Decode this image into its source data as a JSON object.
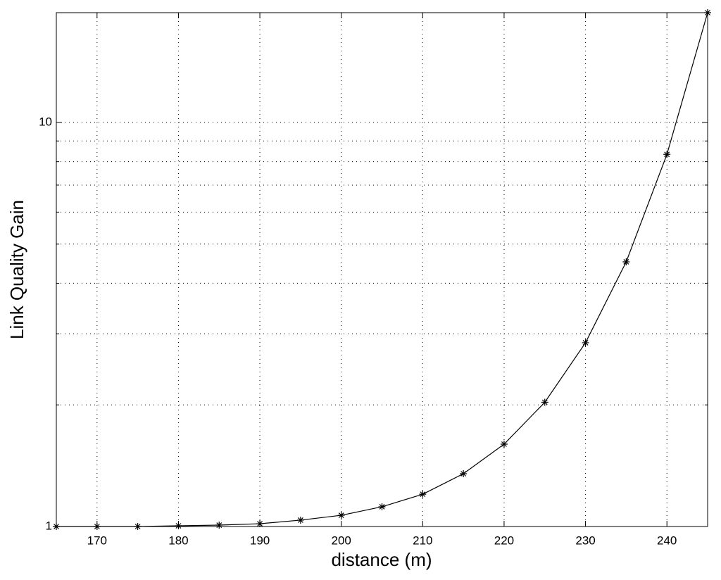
{
  "chart_data": {
    "type": "line",
    "xlabel": "distance (m)",
    "ylabel": "Link Quality Gain",
    "x": [
      165,
      170,
      175,
      180,
      185,
      190,
      195,
      200,
      205,
      210,
      215,
      220,
      225,
      230,
      235,
      240,
      245
    ],
    "values": [
      1,
      1,
      1,
      1.004,
      1.008,
      1.016,
      1.037,
      1.066,
      1.119,
      1.202,
      1.351,
      1.599,
      2.03,
      2.85,
      4.52,
      8.34,
      18.7
    ],
    "color": "#000000",
    "xlim": [
      165,
      245
    ],
    "xticks": [
      170,
      180,
      190,
      200,
      210,
      220,
      230,
      240
    ],
    "ylim": [
      1,
      18.7
    ],
    "yticks": [
      1,
      10
    ],
    "y_minor_ticks": [
      2,
      3,
      4,
      5,
      6,
      7,
      8,
      9
    ],
    "ylog": true,
    "grid": true,
    "marker": "asterisk"
  }
}
